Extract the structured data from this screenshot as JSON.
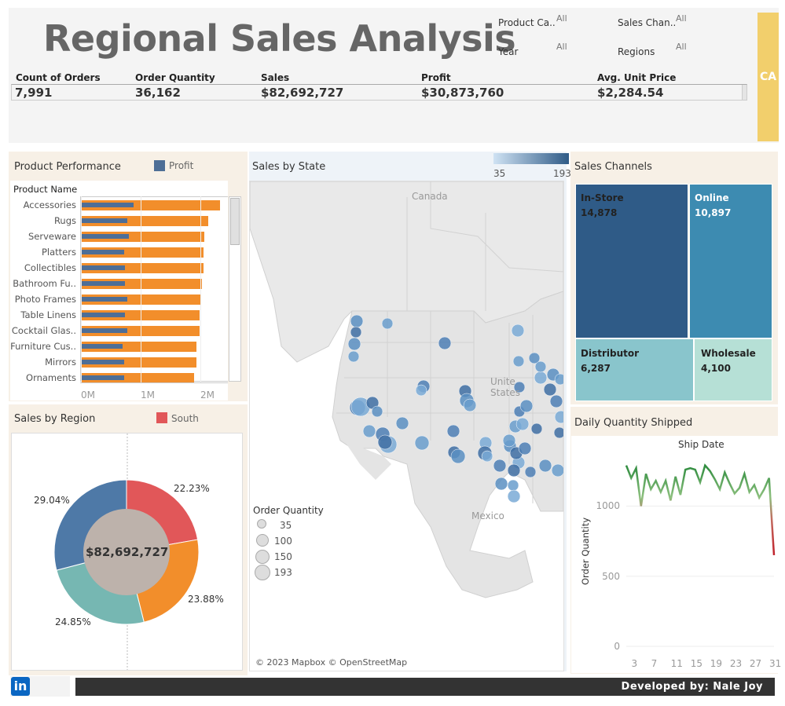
{
  "header": {
    "title": "Regional Sales Analysis",
    "filters": [
      {
        "label": "Product Ca..",
        "value": "All"
      },
      {
        "label": "Sales Chan..",
        "value": "All"
      },
      {
        "label": "Year",
        "value": "All"
      },
      {
        "label": "Regions",
        "value": "All"
      }
    ],
    "side_panel_label": "CA"
  },
  "kpis": [
    {
      "label": "Count of Orders",
      "value": "7,991"
    },
    {
      "label": "Order Quantity",
      "value": "36,162"
    },
    {
      "label": "Sales",
      "value": "$82,692,727"
    },
    {
      "label": "Profit",
      "value": "$30,873,760"
    },
    {
      "label": "Avg. Unit Price",
      "value": "$2,284.54"
    }
  ],
  "product_performance": {
    "title": "Product Performance",
    "legend": "Profit",
    "column_header": "Product Name",
    "axis_ticks": [
      "0M",
      "1M",
      "2M"
    ],
    "colors": {
      "sales": "#f28e2b",
      "profit": "#4e6e96"
    }
  },
  "chart_data": [
    {
      "type": "bar",
      "title": "Product Performance",
      "categories": [
        "Accessories",
        "Rugs",
        "Serveware",
        "Platters",
        "Collectibles",
        "Bathroom Fu..",
        "Photo Frames",
        "Table Linens",
        "Cocktail Glas..",
        "Furniture Cus..",
        "Mirrors",
        "Ornaments"
      ],
      "series": [
        {
          "values": [
            2.33,
            2.13,
            2.06,
            2.05,
            2.05,
            2.02,
            2.01,
            1.99,
            1.99,
            1.94,
            1.94,
            1.9
          ]
        },
        {
          "name": "Profit",
          "values": [
            0.88,
            0.77,
            0.8,
            0.73,
            0.74,
            0.74,
            0.77,
            0.74,
            0.77,
            0.7,
            0.73,
            0.73
          ]
        }
      ],
      "xlim": [
        0,
        2.5
      ],
      "unit": "M"
    },
    {
      "type": "pie",
      "title": "Sales by Region",
      "center_label": "$82,692,727",
      "slices": [
        {
          "label": "22.23%",
          "value": 22.23,
          "color": "#e15759"
        },
        {
          "label": "23.88%",
          "value": 23.88,
          "color": "#f28e2b"
        },
        {
          "label": "24.85%",
          "value": 24.85,
          "color": "#76b7b2"
        },
        {
          "label": "29.04%",
          "value": 29.04,
          "color": "#4e79a7"
        }
      ],
      "legend": "South"
    },
    {
      "type": "line",
      "title": "Daily Quantity Shipped",
      "x_title": "Ship Date",
      "ylabel": "Order Quantity",
      "x_ticks": [
        "3",
        "7",
        "11",
        "15",
        "19",
        "23",
        "27",
        "31"
      ],
      "y_ticks": [
        "0",
        "500",
        "1000"
      ],
      "ylim": [
        0,
        1400
      ],
      "x": [
        1,
        2,
        3,
        4,
        5,
        6,
        7,
        8,
        9,
        10,
        11,
        12,
        13,
        14,
        15,
        16,
        17,
        18,
        19,
        20,
        21,
        22,
        23,
        24,
        25,
        26,
        27,
        28,
        29,
        30,
        31
      ],
      "values": [
        1290,
        1200,
        1270,
        1000,
        1230,
        1120,
        1180,
        1100,
        1180,
        1040,
        1210,
        1080,
        1260,
        1270,
        1260,
        1170,
        1290,
        1250,
        1190,
        1120,
        1240,
        1160,
        1090,
        1130,
        1230,
        1100,
        1150,
        1060,
        1120,
        1200,
        650
      ]
    }
  ],
  "sales_by_region": {
    "title": "Sales by Region",
    "legend": "South"
  },
  "map": {
    "title": "Sales by State",
    "color_legend": {
      "min": "35",
      "max": "193"
    },
    "labels": {
      "canada": "Canada",
      "us1": "Unite",
      "us2": "States",
      "mexico": "Mexico"
    },
    "size_legend_title": "Order Quantity",
    "size_legend": [
      "35",
      "100",
      "150",
      "193"
    ],
    "attribution": "© 2023 Mapbox © OpenStreetMap"
  },
  "sales_channels": {
    "title": "Sales Channels",
    "items": [
      {
        "name": "In-Store",
        "value": "14,878",
        "color": "#2f5b87"
      },
      {
        "name": "Online",
        "value": "10,897",
        "color": "#3d8bb1"
      },
      {
        "name": "Distributor",
        "value": "6,287",
        "color": "#89c5cc"
      },
      {
        "name": "Wholesale",
        "value": "4,100",
        "color": "#b6e0d6"
      }
    ]
  },
  "daily": {
    "title": "Daily Quantity Shipped",
    "x_title": "Ship Date",
    "y_title": "Order Quantity"
  },
  "footer": {
    "credit": "Developed by: Nale Joy",
    "linkedin": "in"
  }
}
